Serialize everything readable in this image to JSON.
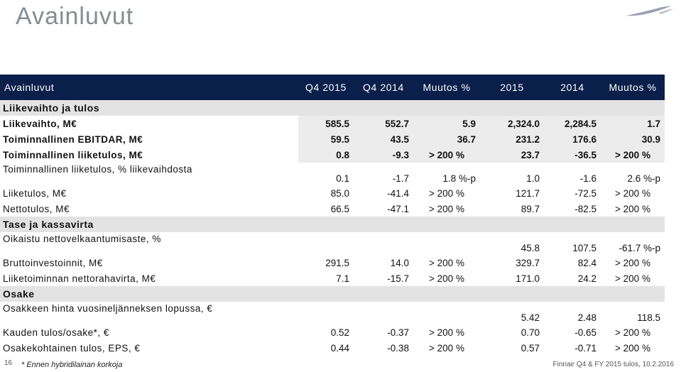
{
  "title": "Avainluvut",
  "columns": [
    "Avainluvut",
    "Q4 2015",
    "Q4 2014",
    "Muutos %",
    "2015",
    "2014",
    "Muutos %"
  ],
  "sections": [
    {
      "name": "Liikevaihto ja tulos",
      "rows": [
        {
          "label": "Liikevaihto, M€",
          "bold": true,
          "values": [
            "585.5",
            "552.7",
            "5.9",
            "2,324.0",
            "2,284.5",
            "1.7"
          ]
        },
        {
          "label": "Toiminnallinen EBITDAR, M€",
          "bold": true,
          "values": [
            "59.5",
            "43.5",
            "36.7",
            "231.2",
            "176.6",
            "30.9"
          ]
        },
        {
          "label": "Toiminnallinen liiketulos, M€",
          "bold": true,
          "values": [
            "0.8",
            "-9.3",
            "> 200 %",
            "23.7",
            "-36.5",
            "> 200 %"
          ]
        },
        {
          "label": "Toiminnallinen liiketulos, % liikevaihdosta",
          "bold": false,
          "tall": true,
          "values": [
            "0.1",
            "-1.7",
            "1.8 %-p",
            "1.0",
            "-1.6",
            "2.6 %-p"
          ]
        },
        {
          "label": "Liiketulos, M€",
          "bold": false,
          "values": [
            "85.0",
            "-41.4",
            "> 200 %",
            "121.7",
            "-72.5",
            "> 200 %"
          ]
        },
        {
          "label": "Nettotulos, M€",
          "bold": false,
          "values": [
            "66.5",
            "-47.1",
            "> 200 %",
            "89.7",
            "-82.5",
            "> 200 %"
          ]
        }
      ]
    },
    {
      "name": "Tase ja kassavirta",
      "rows": [
        {
          "label": "Oikaistu nettovelkaantumisaste, %",
          "bold": false,
          "tall": true,
          "values": [
            "",
            "",
            "",
            "45.8",
            "107.5",
            "-61.7 %-p"
          ]
        },
        {
          "label": "Bruttoinvestoinnit, M€",
          "bold": false,
          "values": [
            "291.5",
            "14.0",
            "> 200 %",
            "329.7",
            "82.4",
            "> 200 %"
          ]
        },
        {
          "label": "Liiketoiminnan nettorahavirta, M€",
          "bold": false,
          "values": [
            "7.1",
            "-15.7",
            "> 200 %",
            "171.0",
            "24.2",
            "> 200 %"
          ]
        }
      ]
    },
    {
      "name": "Osake",
      "rows": [
        {
          "label": "Osakkeen hinta vuosineljänneksen lopussa, €",
          "bold": false,
          "tall": true,
          "values": [
            "",
            "",
            "",
            "5.42",
            "2.48",
            "118.5"
          ]
        },
        {
          "label": "Kauden tulos/osake*, €",
          "bold": false,
          "values": [
            "0.52",
            "-0.37",
            "> 200 %",
            "0.70",
            "-0.65",
            "> 200 %"
          ]
        },
        {
          "label": "Osakekohtainen tulos, EPS, €",
          "bold": false,
          "values": [
            "0.44",
            "-0.38",
            "> 200 %",
            "0.57",
            "-0.71",
            "> 200 %"
          ]
        }
      ]
    }
  ],
  "footer": {
    "page_number": "16",
    "note": "*  Ennen hybridilainan korkoja",
    "source": "Finnair Q4 & FY 2015 tulos, 10.2.2016"
  },
  "colors": {
    "header_bg": "#0b1f4b",
    "section_bg": "#e3e3e3",
    "title": "#878c91",
    "logo": "#9aa3b0"
  },
  "icons": {
    "logo": "finnair-wing-logo"
  }
}
